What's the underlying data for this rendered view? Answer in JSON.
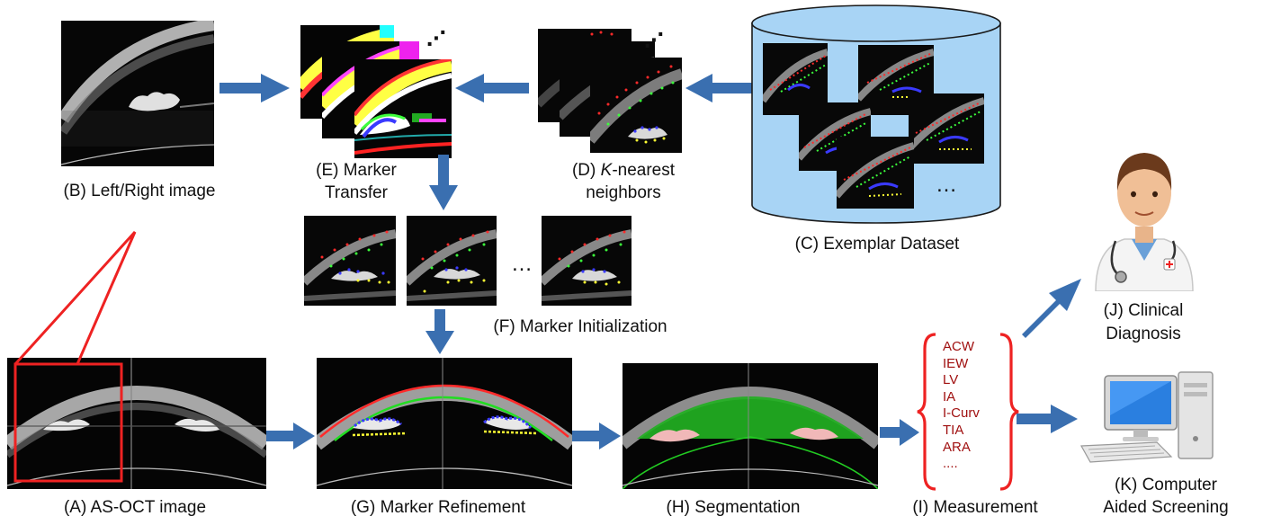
{
  "labels": {
    "b": "(B) Left/Right image",
    "e1": "(E) Marker",
    "e2": "Transfer",
    "d1_pre": "(D) ",
    "d1_k": "K",
    "d1_post": "-nearest",
    "d2": "neighbors",
    "c": "(C) Exemplar Dataset",
    "f": "(F) Marker Initialization",
    "j1": "(J) Clinical",
    "j2": "Diagnosis",
    "a": "(A) AS-OCT image",
    "g": "(G) Marker Refinement",
    "h": "(H) Segmentation",
    "i": "(I) Measurement",
    "k1": "(K) Computer",
    "k2": "Aided Screening"
  },
  "ellipsis": {
    "init": "…",
    "dataset": "…",
    "stack_e": "⋰",
    "stack_d": "⋰"
  },
  "measurements": [
    "ACW",
    "IEW",
    "LV",
    "IA",
    "I-Curv",
    "TIA",
    "ARA",
    "...."
  ],
  "colors": {
    "arrow": "#3a6fb0",
    "cylinder_fill": "#a8d4f5",
    "cylinder_stroke": "#1a1a1a",
    "callout": "#ee2222",
    "measure_text": "#a01010",
    "bracket": "#ee2222",
    "seg_green": "#22b022",
    "marker_red": "#ff2a2a",
    "marker_green": "#3cff3c",
    "marker_blue": "#3a3aff",
    "marker_yellow": "#ffff33"
  }
}
